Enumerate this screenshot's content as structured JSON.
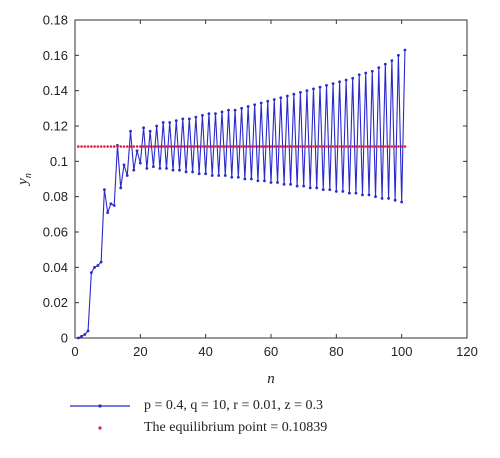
{
  "chart_data": {
    "type": "line",
    "xlabel": "n",
    "ylabel": {
      "main": "y",
      "sub": "n"
    },
    "xlim": [
      0,
      120
    ],
    "ylim": [
      0,
      0.18
    ],
    "xticks": [
      "0",
      "20",
      "40",
      "60",
      "80",
      "100",
      "120"
    ],
    "yticks": [
      "0",
      "0.02",
      "0.04",
      "0.06",
      "0.08",
      "0.1",
      "0.12",
      "0.14",
      "0.16",
      "0.18"
    ],
    "grid": false,
    "legend_position": "bottom",
    "series": [
      {
        "name": "p = 0.4, q = 10, r = 0.01, z = 0.3",
        "style": "line-with-dots",
        "color": "#2a2acb",
        "x": [
          1,
          2,
          3,
          4,
          5,
          6,
          7,
          8,
          9,
          10,
          11,
          12,
          13,
          14,
          15,
          16,
          17,
          18,
          19,
          20,
          21,
          22,
          23,
          24,
          25,
          26,
          27,
          28,
          29,
          30,
          31,
          32,
          33,
          34,
          35,
          36,
          37,
          38,
          39,
          40,
          41,
          42,
          43,
          44,
          45,
          46,
          47,
          48,
          49,
          50,
          51,
          52,
          53,
          54,
          55,
          56,
          57,
          58,
          59,
          60,
          61,
          62,
          63,
          64,
          65,
          66,
          67,
          68,
          69,
          70,
          71,
          72,
          73,
          74,
          75,
          76,
          77,
          78,
          79,
          80,
          81,
          82,
          83,
          84,
          85,
          86,
          87,
          88,
          89,
          90,
          91,
          92,
          93,
          94,
          95,
          96,
          97,
          98,
          99,
          100,
          101
        ],
        "y": [
          0.0,
          0.001,
          0.002,
          0.004,
          0.037,
          0.04,
          0.041,
          0.043,
          0.084,
          0.071,
          0.076,
          0.075,
          0.109,
          0.085,
          0.098,
          0.092,
          0.117,
          0.095,
          0.106,
          0.099,
          0.119,
          0.096,
          0.117,
          0.097,
          0.12,
          0.096,
          0.122,
          0.096,
          0.122,
          0.095,
          0.123,
          0.095,
          0.124,
          0.094,
          0.124,
          0.094,
          0.125,
          0.093,
          0.126,
          0.093,
          0.127,
          0.092,
          0.127,
          0.092,
          0.128,
          0.092,
          0.129,
          0.091,
          0.129,
          0.091,
          0.13,
          0.09,
          0.131,
          0.09,
          0.132,
          0.089,
          0.133,
          0.089,
          0.134,
          0.088,
          0.135,
          0.088,
          0.136,
          0.087,
          0.137,
          0.087,
          0.138,
          0.086,
          0.139,
          0.086,
          0.14,
          0.085,
          0.141,
          0.085,
          0.142,
          0.084,
          0.143,
          0.084,
          0.144,
          0.083,
          0.145,
          0.083,
          0.146,
          0.082,
          0.147,
          0.082,
          0.149,
          0.081,
          0.15,
          0.081,
          0.151,
          0.08,
          0.153,
          0.079,
          0.155,
          0.079,
          0.157,
          0.078,
          0.16,
          0.077,
          0.163
        ]
      },
      {
        "name": "The equilibrium point = 0.10839",
        "style": "dots",
        "color": "#e0203a",
        "value": 0.10839,
        "x_start": 1,
        "x_end": 101
      }
    ]
  }
}
